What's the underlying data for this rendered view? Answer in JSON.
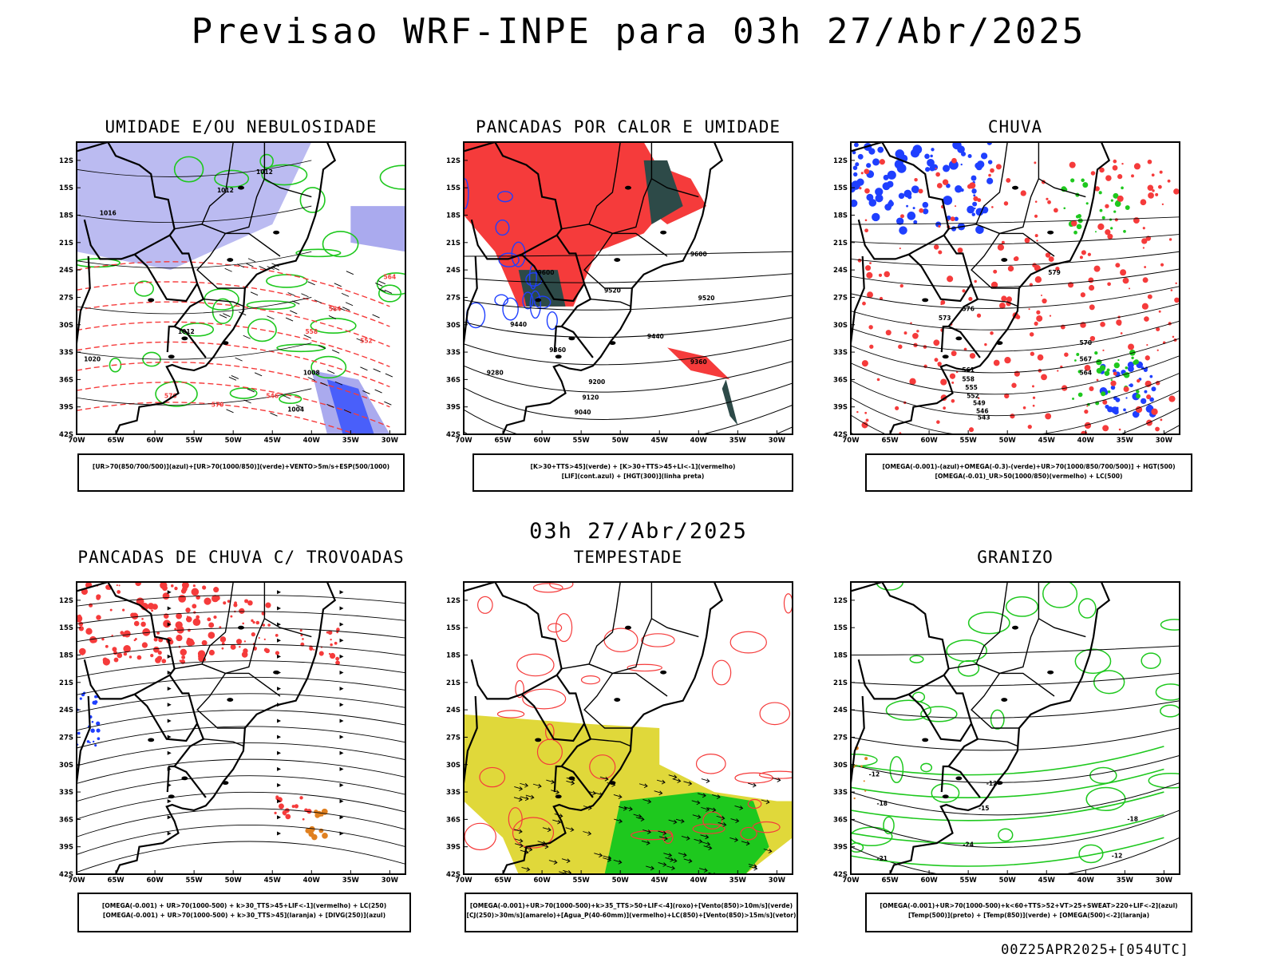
{
  "header": {
    "title": "Previsao WRF-INPE  para 03h 27/Abr/2025"
  },
  "mid_label": "03h 27/Abr/2025",
  "footer": "00Z25APR2025+[054UTC]",
  "axes": {
    "lat_labels": [
      "12S",
      "15S",
      "18S",
      "21S",
      "24S",
      "27S",
      "30S",
      "33S",
      "36S",
      "39S",
      "42S"
    ],
    "lon_labels": [
      "70W",
      "65W",
      "60W",
      "55W",
      "50W",
      "45W",
      "40W",
      "35W",
      "30W"
    ]
  },
  "panels": [
    {
      "title": "UMIDADE E/OU NEBULOSIDADE",
      "legend": [
        "[UR>70(850/700/500)](azul)+[UR>70(1000/850)](verde)+VENTO>5m/s+ESP(500/1000)"
      ],
      "contour_labels": [
        "1012",
        "1012",
        "1016",
        "1012",
        "1008",
        "1004",
        "576",
        "570",
        "584",
        "552",
        "546",
        "558",
        "564",
        "1020"
      ]
    },
    {
      "title": "PANCADAS POR CALOR E UMIDADE",
      "legend": [
        "[K>30+TTS>45](verde) + [K>30+TTS>45+LI<-1](vermelho)",
        "[LIF](cont.azul) + [HGT(300)](linha preta)"
      ],
      "contour_labels": [
        "9600",
        "9600",
        "9520",
        "9440",
        "9360",
        "9280",
        "9200",
        "9120",
        "9040",
        "9520",
        "9440",
        "9360"
      ]
    },
    {
      "title": "CHUVA",
      "legend": [
        "[OMEGA(-0.001)-(azul)+OMEGA(-0.3)-(verde)+UR>70(1000/850/700/500)] + HGT(500)",
        "[OMEGA(-0.01)_UR>50(1000/850)(vermelho) + LC(500)"
      ],
      "contour_labels": [
        "579",
        "576",
        "573",
        "570",
        "567",
        "564",
        "561",
        "558",
        "555",
        "552",
        "549",
        "546",
        "543"
      ]
    },
    {
      "title": "PANCADAS DE CHUVA C/ TROVOADAS",
      "legend": [
        "[OMEGA(-0.001) + UR>70(1000-500) + k>30_TTS>45+LIF<-1](vermelho) + LC(250)",
        "[OMEGA(-0.001) + UR>70(1000-500) + k>30_TTS>45](laranja) + [DIVG(250)](azul)"
      ],
      "contour_labels": []
    },
    {
      "title": "TEMPESTADE",
      "legend": [
        "[OMEGA(-0.001)+UR>70(1000-500)+k>35_TTS>50+LIF<-4](roxo)+[Vento(850)>10m/s](verde)",
        "[CJ(250)>30m/s](amarelo)+[Agua_P(40-60mm)](vermelho)+LC(850)+[Vento(850)>15m/s](vetor)"
      ],
      "contour_labels": []
    },
    {
      "title": "GRANIZO",
      "legend": [
        "[OMEGA(-0.001)+UR>70(1000-500)+k<60+TTS>52+VT>25+SWEAT>220+LIF<-2](azul)",
        "[Temp(500)](preto) + [Temp(850)](verde) + [OMEGA(500)<-2](laranja)"
      ],
      "contour_labels": [
        "-12",
        "-18",
        "-15",
        "-21",
        "-24",
        "-12",
        "-18",
        "-12"
      ]
    }
  ],
  "colors": {
    "red": "#f53b3b",
    "green": "#1ec81e",
    "blue": "#1f3fff",
    "lavender": "#aaaaee",
    "yellow": "#e0d83a",
    "darkteal": "#2d4a48",
    "orange": "#e08020"
  }
}
